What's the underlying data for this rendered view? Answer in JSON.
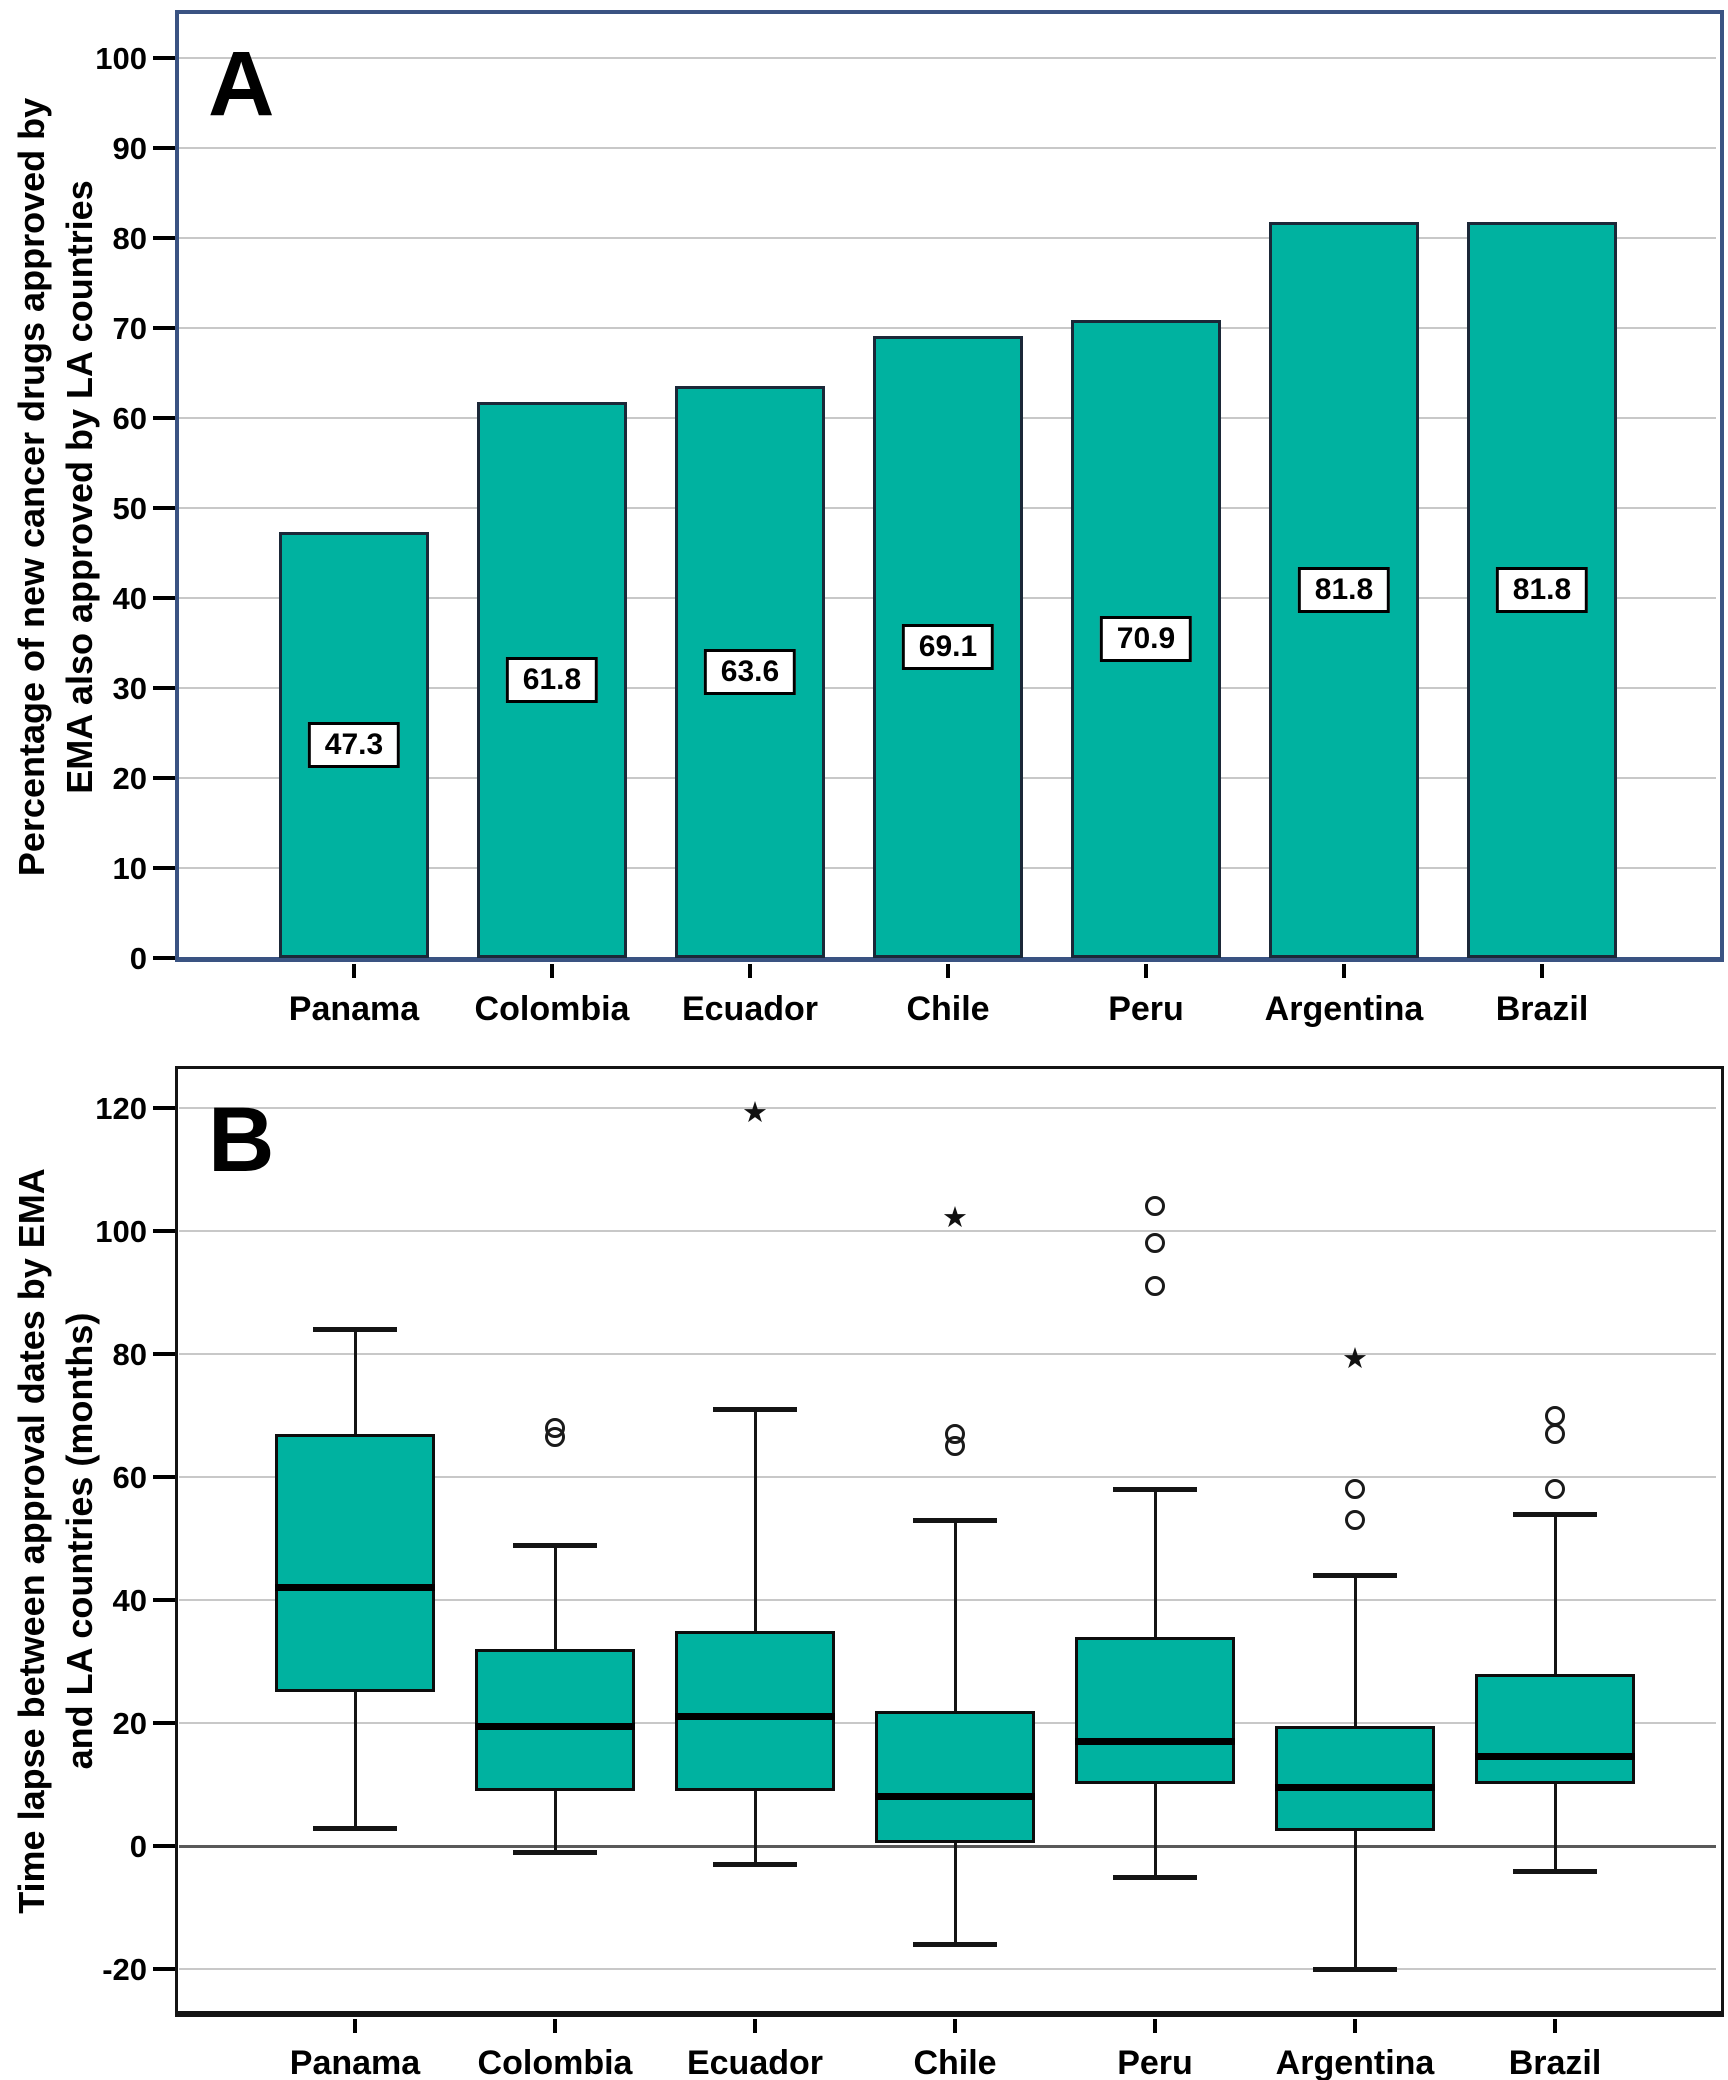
{
  "figure": {
    "background": "#ffffff",
    "teal_fill": "#00b2a0",
    "panel_a_border_color": "#3a5382",
    "panel_b_border_color": "#141414",
    "grid_color": "#c8c8c8",
    "zero_line_color": "#595959"
  },
  "chart_data": [
    {
      "type": "bar",
      "panel_label": "A",
      "ylabel": "Percentage of new cancer drugs approved by EMA also approved by LA countries",
      "ylabel_lines": [
        "Percentage of new cancer drugs approved by",
        "EMA also approved by LA countries"
      ],
      "xlabel": "",
      "categories": [
        "Panama",
        "Colombia",
        "Ecuador",
        "Chile",
        "Peru",
        "Argentina",
        "Brazil"
      ],
      "values": [
        47.3,
        61.8,
        63.6,
        69.1,
        70.9,
        81.8,
        81.8
      ],
      "bar_labels": [
        "47.3",
        "61.8",
        "63.6",
        "69.1",
        "70.9",
        "81.8",
        "81.8"
      ],
      "ylim": [
        0,
        105
      ],
      "yticks": [
        0,
        10,
        20,
        30,
        40,
        50,
        60,
        70,
        80,
        90,
        100
      ],
      "grid": true,
      "legend": null,
      "bar_color": "#00b2a0"
    },
    {
      "type": "boxplot",
      "panel_label": "B",
      "ylabel": "Time lapse between approval dates by EMA and LA countries (months)",
      "ylabel_lines": [
        "Time lapse between approval dates by EMA",
        "and LA countries (months)"
      ],
      "xlabel": "",
      "categories": [
        "Panama",
        "Colombia",
        "Ecuador",
        "Chile",
        "Peru",
        "Argentina",
        "Brazil"
      ],
      "yticks": [
        -20,
        0,
        20,
        40,
        60,
        80,
        100,
        120
      ],
      "ylim": [
        -27,
        126
      ],
      "grid": true,
      "legend": null,
      "box_color": "#00b2a0",
      "series": [
        {
          "name": "Panama",
          "whisker_low": 3,
          "q1": 25,
          "median": 42,
          "q3": 67,
          "whisker_high": 84,
          "outliers": [],
          "extremes": []
        },
        {
          "name": "Colombia",
          "whisker_low": -1,
          "q1": 9,
          "median": 19.5,
          "q3": 32,
          "whisker_high": 49,
          "outliers": [
            66.5,
            68
          ],
          "extremes": []
        },
        {
          "name": "Ecuador",
          "whisker_low": -3,
          "q1": 9,
          "median": 21,
          "q3": 35,
          "whisker_high": 71,
          "outliers": [],
          "extremes": [
            119
          ]
        },
        {
          "name": "Chile",
          "whisker_low": -16,
          "q1": 0.5,
          "median": 8,
          "q3": 22,
          "whisker_high": 53,
          "outliers": [
            65,
            67
          ],
          "extremes": [
            102
          ]
        },
        {
          "name": "Peru",
          "whisker_low": -5,
          "q1": 10,
          "median": 17,
          "q3": 34,
          "whisker_high": 58,
          "outliers": [
            91,
            98,
            104
          ],
          "extremes": []
        },
        {
          "name": "Argentina",
          "whisker_low": -20,
          "q1": 2.5,
          "median": 9.5,
          "q3": 19.5,
          "whisker_high": 44,
          "outliers": [
            53,
            58
          ],
          "extremes": [
            79
          ]
        },
        {
          "name": "Brazil",
          "whisker_low": -4,
          "q1": 10,
          "median": 14.5,
          "q3": 28,
          "whisker_high": 54,
          "outliers": [
            58,
            67,
            70
          ],
          "extremes": []
        }
      ]
    }
  ]
}
